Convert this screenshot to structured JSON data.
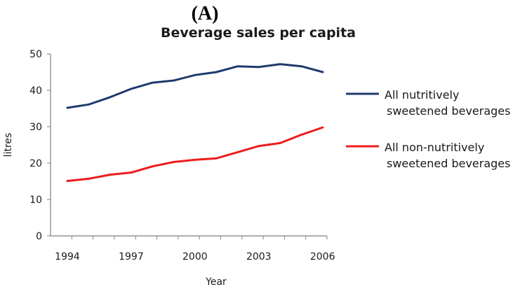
{
  "figure": {
    "panel_label": "(A)"
  },
  "chart_data": {
    "type": "line",
    "title": "Beverage sales per capita",
    "xlabel": "Year",
    "ylabel": "litres",
    "x": [
      1994,
      1995,
      1996,
      1997,
      1998,
      1999,
      2000,
      2001,
      2002,
      2003,
      2004,
      2005,
      2006
    ],
    "xticks": [
      1994,
      1997,
      2000,
      2003,
      2006
    ],
    "xlim": [
      1994,
      2006
    ],
    "ylim": [
      0,
      50
    ],
    "yticks": [
      0,
      10,
      20,
      30,
      40,
      50
    ],
    "grid": false,
    "legend_position": "right",
    "series": [
      {
        "name": "All nutritively sweetened beverages",
        "legend_lines": [
          "All nutritively",
          "sweetened beverages"
        ],
        "color": "#1f3a6e",
        "values": [
          35.2,
          36.1,
          38.1,
          40.4,
          42.1,
          42.7,
          44.2,
          45.0,
          46.6,
          46.4,
          47.2,
          46.6,
          45.0
        ]
      },
      {
        "name": "All non-nutritively sweetened beverages",
        "legend_lines": [
          "All non-nutritively",
          "sweetened beverages"
        ],
        "color": "#ee1c1c",
        "values": [
          15.1,
          15.7,
          16.8,
          17.4,
          19.1,
          20.3,
          20.9,
          21.3,
          23.0,
          24.7,
          25.5,
          27.8,
          29.8
        ]
      }
    ]
  }
}
